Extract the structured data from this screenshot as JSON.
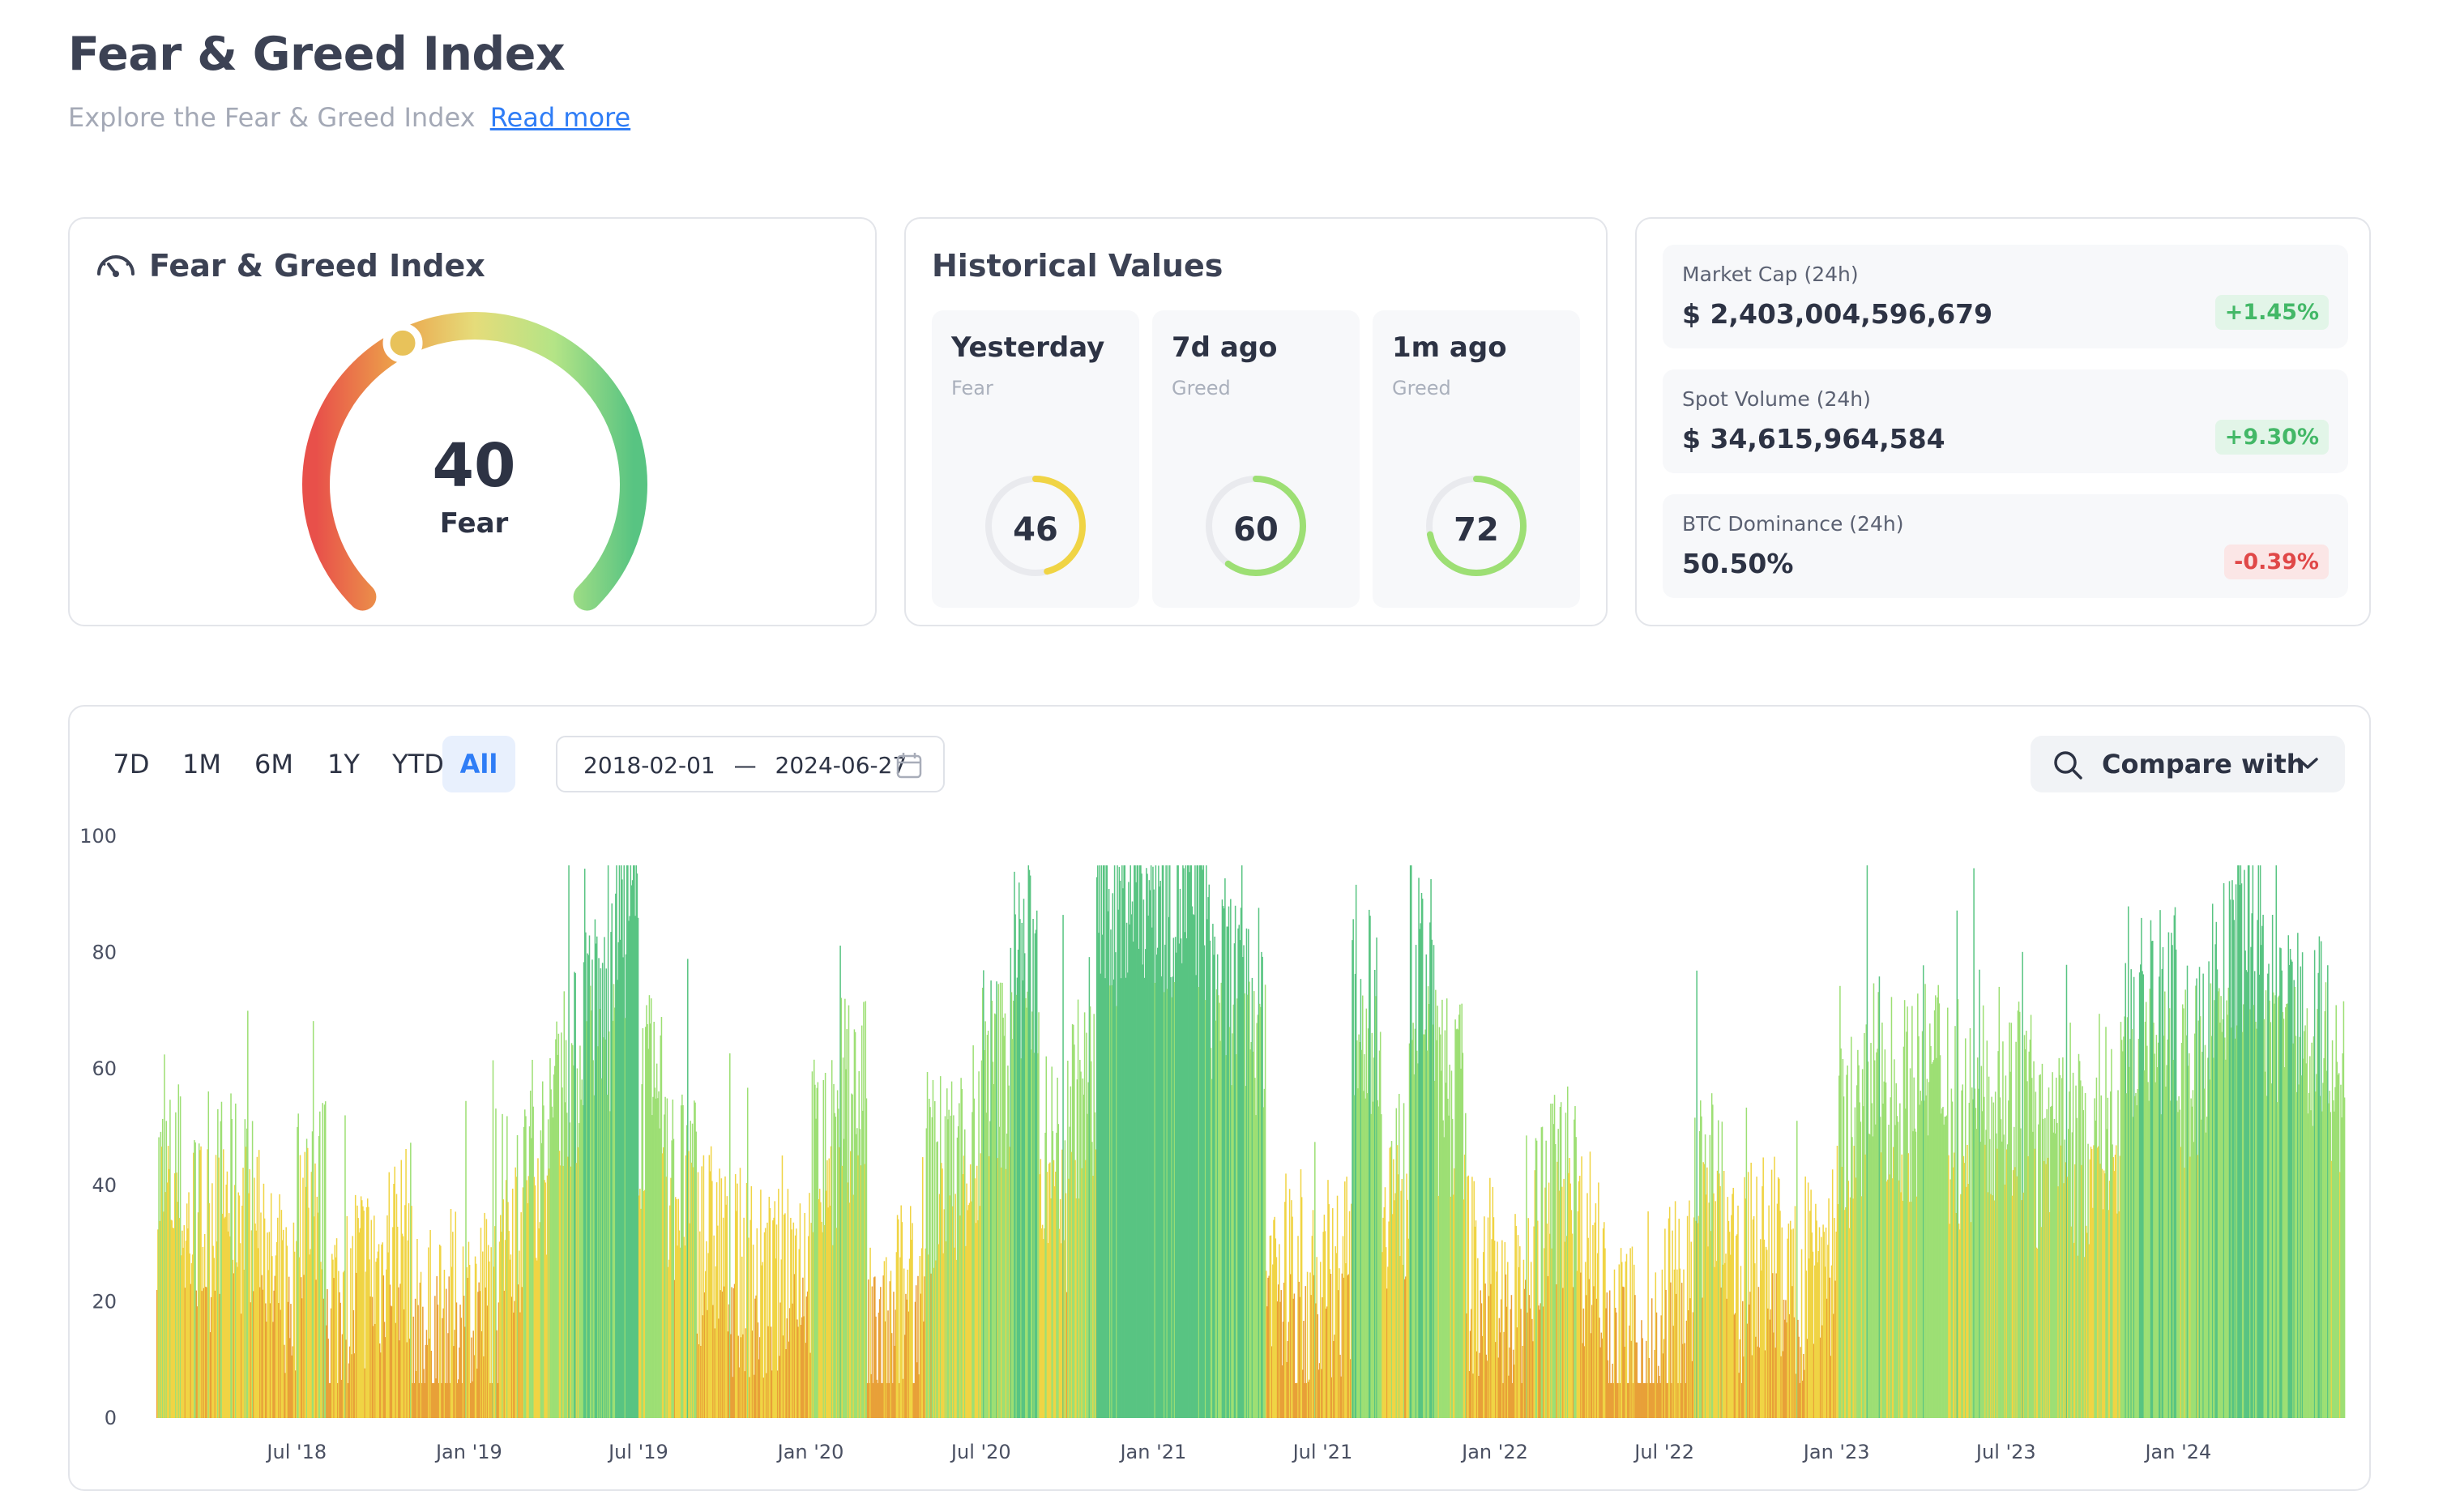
{
  "header": {
    "title": "Fear & Greed Index",
    "subtitle": "Explore the Fear & Greed Index",
    "read_more": "Read more"
  },
  "gauge": {
    "title": "Fear & Greed Index",
    "icon": "gauge-icon",
    "value": "40",
    "label": "Fear",
    "level": 40
  },
  "historical": {
    "title": "Historical Values",
    "items": [
      {
        "period": "Yesterday",
        "classification": "Fear",
        "value": "46",
        "level": 46,
        "color": "#f0d444"
      },
      {
        "period": "7d ago",
        "classification": "Greed",
        "value": "60",
        "level": 60,
        "color": "#9ddf74"
      },
      {
        "period": "1m ago",
        "classification": "Greed",
        "value": "72",
        "level": 72,
        "color": "#9ddf74"
      }
    ]
  },
  "market": {
    "rows": [
      {
        "label": "Market Cap (24h)",
        "value": "$ 2,403,004,596,679",
        "change": "+1.45%",
        "direction": "up"
      },
      {
        "label": "Spot Volume (24h)",
        "value": "$ 34,615,964,584",
        "change": "+9.30%",
        "direction": "up"
      },
      {
        "label": "BTC Dominance (24h)",
        "value": "50.50%",
        "change": "-0.39%",
        "direction": "down"
      }
    ]
  },
  "controls": {
    "ranges": [
      "7D",
      "1M",
      "6M",
      "1Y",
      "YTD",
      "All"
    ],
    "active_range": "All",
    "date_from": "2018-02-01",
    "date_separator": "—",
    "date_to": "2024-06-27",
    "compare_label": "Compare with"
  },
  "colors": {
    "extreme_fear": "#e8504a",
    "fear": "#e8a038",
    "neutral": "#f0d444",
    "greed": "#9ddf74",
    "extreme_greed": "#58c482",
    "accent": "#2f7df6"
  },
  "chart_data": {
    "type": "bar",
    "y_ticks": [
      "0",
      "20",
      "40",
      "60",
      "80",
      "100"
    ],
    "ylim": [
      0,
      100
    ],
    "x_ticks": [
      "Jul '18",
      "Jan '19",
      "Jul '19",
      "Jan '20",
      "Jul '20",
      "Jan '21",
      "Jul '21",
      "Jan '22",
      "Jul '22",
      "Jan '23",
      "Jul '23",
      "Jan '24"
    ],
    "x_range": [
      "2018-02-01",
      "2024-06-27"
    ],
    "series_by_month": [
      {
        "month": "2018-02",
        "value": 40
      },
      {
        "month": "2018-03",
        "value": 32
      },
      {
        "month": "2018-04",
        "value": 38
      },
      {
        "month": "2018-05",
        "value": 35
      },
      {
        "month": "2018-06",
        "value": 22
      },
      {
        "month": "2018-07",
        "value": 38
      },
      {
        "month": "2018-08",
        "value": 20
      },
      {
        "month": "2018-09",
        "value": 25
      },
      {
        "month": "2018-10",
        "value": 30
      },
      {
        "month": "2018-11",
        "value": 15
      },
      {
        "month": "2018-12",
        "value": 18
      },
      {
        "month": "2019-01",
        "value": 20
      },
      {
        "month": "2019-02",
        "value": 35
      },
      {
        "month": "2019-03",
        "value": 45
      },
      {
        "month": "2019-04",
        "value": 60
      },
      {
        "month": "2019-05",
        "value": 70
      },
      {
        "month": "2019-06",
        "value": 85
      },
      {
        "month": "2019-07",
        "value": 55
      },
      {
        "month": "2019-08",
        "value": 40
      },
      {
        "month": "2019-09",
        "value": 30
      },
      {
        "month": "2019-10",
        "value": 25
      },
      {
        "month": "2019-11",
        "value": 22
      },
      {
        "month": "2019-12",
        "value": 28
      },
      {
        "month": "2020-01",
        "value": 45
      },
      {
        "month": "2020-02",
        "value": 55
      },
      {
        "month": "2020-03",
        "value": 12
      },
      {
        "month": "2020-04",
        "value": 20
      },
      {
        "month": "2020-05",
        "value": 42
      },
      {
        "month": "2020-06",
        "value": 45
      },
      {
        "month": "2020-07",
        "value": 60
      },
      {
        "month": "2020-08",
        "value": 78
      },
      {
        "month": "2020-09",
        "value": 45
      },
      {
        "month": "2020-10",
        "value": 55
      },
      {
        "month": "2020-11",
        "value": 88
      },
      {
        "month": "2020-12",
        "value": 92
      },
      {
        "month": "2021-01",
        "value": 90
      },
      {
        "month": "2021-02",
        "value": 88
      },
      {
        "month": "2021-03",
        "value": 75
      },
      {
        "month": "2021-04",
        "value": 70
      },
      {
        "month": "2021-05",
        "value": 25
      },
      {
        "month": "2021-06",
        "value": 20
      },
      {
        "month": "2021-07",
        "value": 25
      },
      {
        "month": "2021-08",
        "value": 70
      },
      {
        "month": "2021-09",
        "value": 40
      },
      {
        "month": "2021-10",
        "value": 75
      },
      {
        "month": "2021-11",
        "value": 55
      },
      {
        "month": "2021-12",
        "value": 25
      },
      {
        "month": "2022-01",
        "value": 18
      },
      {
        "month": "2022-02",
        "value": 35
      },
      {
        "month": "2022-03",
        "value": 40
      },
      {
        "month": "2022-04",
        "value": 30
      },
      {
        "month": "2022-05",
        "value": 12
      },
      {
        "month": "2022-06",
        "value": 10
      },
      {
        "month": "2022-07",
        "value": 20
      },
      {
        "month": "2022-08",
        "value": 38
      },
      {
        "month": "2022-09",
        "value": 25
      },
      {
        "month": "2022-10",
        "value": 28
      },
      {
        "month": "2022-11",
        "value": 22
      },
      {
        "month": "2022-12",
        "value": 28
      },
      {
        "month": "2023-01",
        "value": 50
      },
      {
        "month": "2023-02",
        "value": 58
      },
      {
        "month": "2023-03",
        "value": 55
      },
      {
        "month": "2023-04",
        "value": 60
      },
      {
        "month": "2023-05",
        "value": 50
      },
      {
        "month": "2023-06",
        "value": 55
      },
      {
        "month": "2023-07",
        "value": 55
      },
      {
        "month": "2023-08",
        "value": 45
      },
      {
        "month": "2023-09",
        "value": 45
      },
      {
        "month": "2023-10",
        "value": 52
      },
      {
        "month": "2023-11",
        "value": 68
      },
      {
        "month": "2023-12",
        "value": 70
      },
      {
        "month": "2024-01",
        "value": 60
      },
      {
        "month": "2024-02",
        "value": 75
      },
      {
        "month": "2024-03",
        "value": 82
      },
      {
        "month": "2024-04",
        "value": 70
      },
      {
        "month": "2024-05",
        "value": 68
      },
      {
        "month": "2024-06",
        "value": 60
      }
    ]
  }
}
